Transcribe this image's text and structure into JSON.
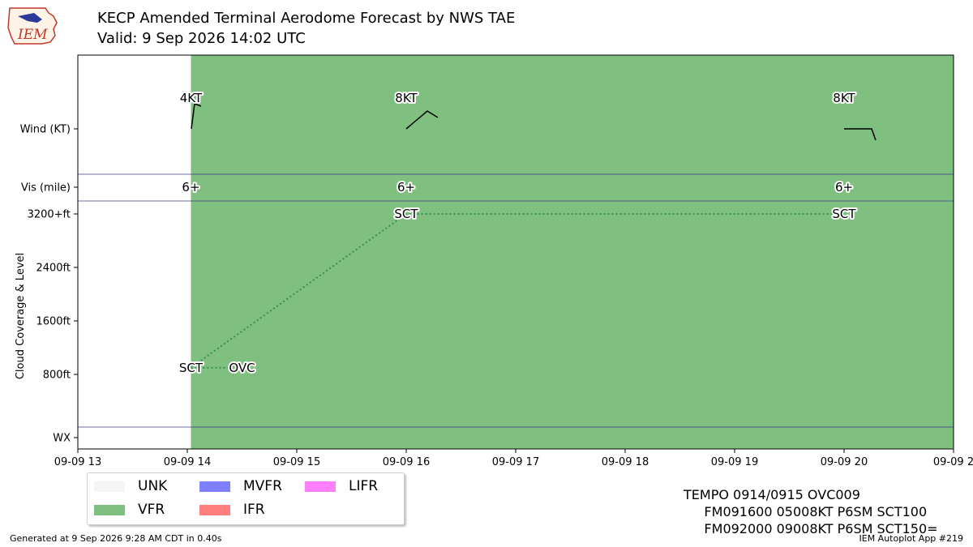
{
  "title": "KECP Amended Terminal Aerodome Forecast by NWS TAE",
  "subtitle": "Valid: 9 Sep 2026 14:02 UTC",
  "logo_text": "IEM",
  "footer_left": "Generated at 9 Sep 2026 9:28 AM CDT in 0.40s",
  "footer_right": "IEM Autoplot App #219",
  "taf_lines": [
    "TEMPO 0914/0915 OVC009",
    "     FM091600 05008KT P6SM SCT100",
    "     FM092000 09008KT P6SM SCT150="
  ],
  "legend": [
    {
      "label": "UNK",
      "color": "#f5f5f5"
    },
    {
      "label": "VFR",
      "color": "#7fbf7f"
    },
    {
      "label": "MVFR",
      "color": "#7f7fff"
    },
    {
      "label": "IFR",
      "color": "#ff7f7f"
    },
    {
      "label": "LIFR",
      "color": "#ff7fff"
    }
  ],
  "chart_data": {
    "type": "timeline",
    "x_ticks": [
      "09-09 13",
      "09-09 14",
      "09-09 15",
      "09-09 16",
      "09-09 17",
      "09-09 18",
      "09-09 19",
      "09-09 20",
      "09-09 2"
    ],
    "xlim_hours": [
      13,
      21
    ],
    "row_labels": {
      "wind": "Wind (KT)",
      "vis": "Vis (mile)",
      "wx": "WX"
    },
    "ylabel": "Cloud Coverage & Level",
    "cloud_ticks": [
      {
        "value": 800,
        "label": "800ft"
      },
      {
        "value": 1600,
        "label": "1600ft"
      },
      {
        "value": 2400,
        "label": "2400ft"
      },
      {
        "value": 3200,
        "label": "3200+ft"
      }
    ],
    "category_periods": [
      {
        "start": 14.033,
        "end": 21,
        "category": "VFR",
        "color": "#7fbf7f"
      }
    ],
    "wind": [
      {
        "time": 14.033,
        "label": "4KT",
        "speed": 4
      },
      {
        "time": 16.0,
        "label": "8KT",
        "speed": 8
      },
      {
        "time": 20.0,
        "label": "8KT",
        "speed": 8
      }
    ],
    "visibility": [
      {
        "time": 14.033,
        "label": "6+"
      },
      {
        "time": 16.0,
        "label": "6+"
      },
      {
        "time": 20.0,
        "label": "6+"
      }
    ],
    "clouds": [
      {
        "time": 14.033,
        "coverage": "SCT",
        "level": 900
      },
      {
        "time": 14.5,
        "coverage": "OVC",
        "level": 900
      },
      {
        "time": 16.0,
        "coverage": "SCT",
        "level": 3200
      },
      {
        "time": 20.0,
        "coverage": "SCT",
        "level": 3200
      }
    ],
    "cloud_lines": [
      [
        {
          "time": 14.033,
          "level": 900
        },
        {
          "time": 14.5,
          "level": 900
        }
      ],
      [
        {
          "time": 14.033,
          "level": 900
        },
        {
          "time": 16.0,
          "level": 3200
        },
        {
          "time": 20.0,
          "level": 3200
        }
      ]
    ],
    "line_color": "#2e8b57"
  }
}
